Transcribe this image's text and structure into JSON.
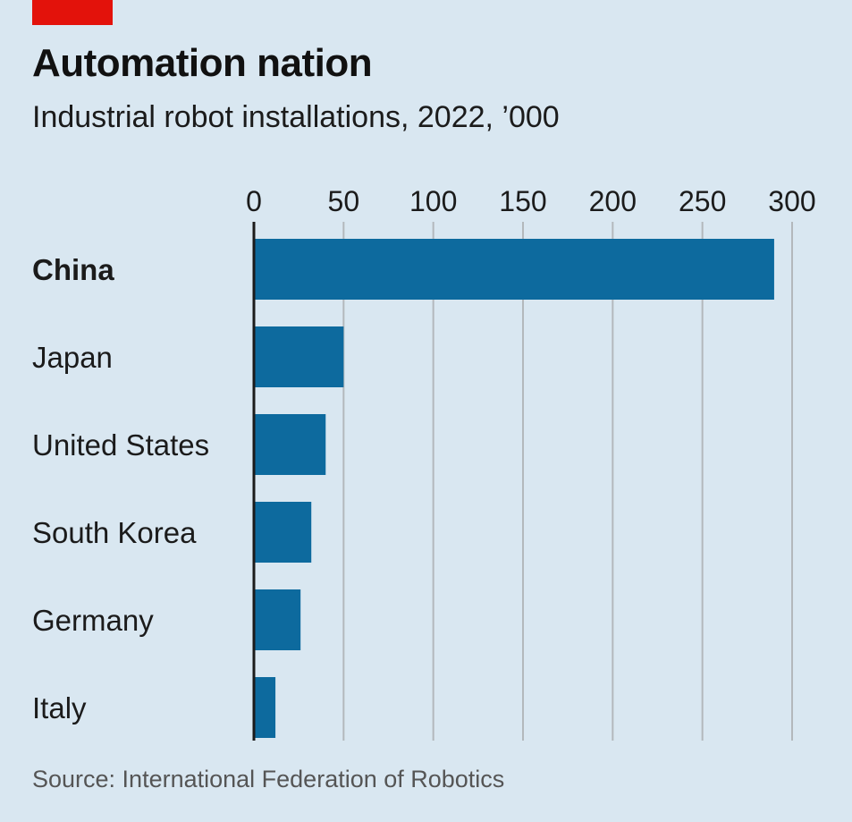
{
  "header": {
    "title": "Automation nation",
    "subtitle": "Industrial robot installations, 2022, ’000"
  },
  "footer": {
    "source": "Source: International Federation of Robotics"
  },
  "colors": {
    "background": "#d9e7f1",
    "bar": "#0d6a9e",
    "accent": "#e3120b",
    "grid": "#b3b8bc"
  },
  "chart_data": {
    "type": "bar",
    "orientation": "horizontal",
    "title": "Automation nation",
    "subtitle": "Industrial robot installations, 2022, ’000",
    "categories": [
      "China",
      "Japan",
      "United States",
      "South Korea",
      "Germany",
      "Italy"
    ],
    "values": [
      290,
      50,
      40,
      32,
      26,
      12
    ],
    "highlight": "China",
    "xlim": [
      0,
      300
    ],
    "xticks": [
      0,
      50,
      100,
      150,
      200,
      250,
      300
    ],
    "axis_position": "top",
    "grid": true,
    "xlabel": "",
    "ylabel": ""
  }
}
